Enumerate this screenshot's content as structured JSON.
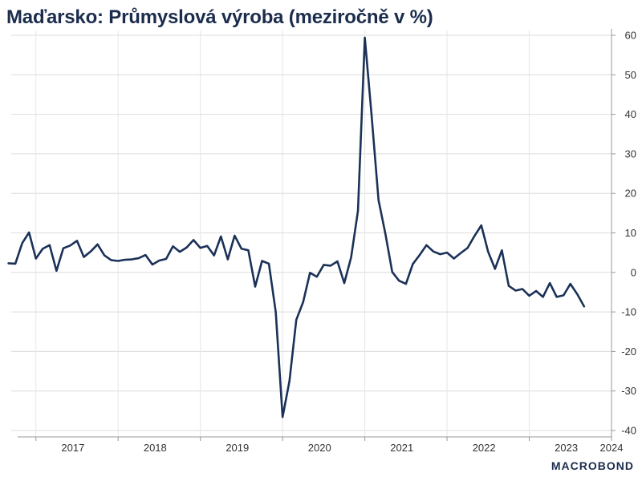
{
  "chart_data": {
    "type": "line",
    "title": "Maďarsko: Průmyslová výroba (meziročně v %)",
    "xlabel": "",
    "ylabel": "",
    "ylim": [
      -40,
      60
    ],
    "yticks": [
      60,
      50,
      40,
      30,
      20,
      10,
      0,
      -10,
      -20,
      -30,
      -40
    ],
    "xlim": [
      2016.7,
      2024.0
    ],
    "x_tick_labels": [
      "2017",
      "2018",
      "2019",
      "2020",
      "2021",
      "2022",
      "2023",
      "2024"
    ],
    "x_tick_label_years": [
      2017,
      2018,
      2019,
      2020,
      2021,
      2022,
      2023,
      2024
    ],
    "x_tick_mark_years": [
      2017,
      2018,
      2019,
      2020,
      2021,
      2022,
      2023,
      2024
    ],
    "grid": true,
    "y_axis_position": "right",
    "line_color": "#1b3157",
    "series": [
      {
        "start": "2016-09",
        "frequency": "monthly",
        "values": [
          2.3,
          2.2,
          7.4,
          10.1,
          3.5,
          6.0,
          6.9,
          0.4,
          6.1,
          6.8,
          8.0,
          3.9,
          5.3,
          7.1,
          4.3,
          3.1,
          2.9,
          3.2,
          3.3,
          3.6,
          4.4,
          2.0,
          3.0,
          3.4,
          6.6,
          5.2,
          6.3,
          8.2,
          6.2,
          6.7,
          4.3,
          9.1,
          3.3,
          9.3,
          6.0,
          5.6,
          -3.6,
          2.9,
          2.2,
          -10.0,
          -36.6,
          -27.5,
          -12.0,
          -7.5,
          -0.1,
          -1.1,
          1.9,
          1.7,
          2.8,
          -2.7,
          3.8,
          15.6,
          59.4,
          39.5,
          18.3,
          9.8,
          0.1,
          -2.1,
          -2.9,
          2.1,
          4.4,
          6.9,
          5.3,
          4.6,
          5.0,
          3.5,
          4.9,
          6.2,
          9.2,
          11.9,
          5.2,
          0.9,
          5.6,
          -3.4,
          -4.6,
          -4.2,
          -5.9,
          -4.7,
          -6.2,
          -2.7,
          -6.2,
          -5.8,
          -2.9,
          -5.5,
          -8.6
        ]
      }
    ]
  },
  "brand": {
    "name": "MACROBOND"
  }
}
